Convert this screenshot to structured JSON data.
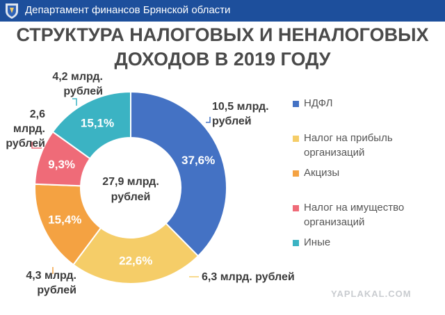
{
  "header": {
    "title": "Департамент финансов Брянской области",
    "crest_icon": "bryansk-coat-of-arms-icon",
    "background": "#1d4f9c"
  },
  "title": {
    "line1": "СТРУКТУРА НАЛОГОВЫХ И НЕНАЛОГОВЫХ",
    "line2": "ДОХОДОВ В 2019 ГОДУ"
  },
  "chart_data": {
    "type": "pie",
    "title": "СТРУКТУРА НАЛОГОВЫХ И НЕНАЛОГОВЫХ ДОХОДОВ В 2019 ГОДУ",
    "donut": true,
    "center_label": [
      "27,9 млрд.",
      "рублей"
    ],
    "legend_position": "right",
    "slices": [
      {
        "name": "НДФЛ",
        "value": 37.6,
        "pct_label": "37,6%",
        "amount_label": [
          "10,5 млрд.",
          "рублей"
        ],
        "color": "#4472c4"
      },
      {
        "name": "Налог на прибыль организаций",
        "value": 22.6,
        "pct_label": "22,6%",
        "amount_label": [
          "6,3 млрд. рублей"
        ],
        "color": "#f5cd68"
      },
      {
        "name": "Акцизы",
        "value": 15.4,
        "pct_label": "15,4%",
        "amount_label": [
          "4,3 млрд.",
          "рублей"
        ],
        "color": "#f4a242"
      },
      {
        "name": "Налог на имущество организаций",
        "value": 9.3,
        "pct_label": "9,3%",
        "amount_label": [
          "2,6 млрд.",
          "рублей"
        ],
        "color": "#ef6b78"
      },
      {
        "name": "Иные",
        "value": 15.1,
        "pct_label": "15,1%",
        "amount_label": [
          "4,2 млрд.",
          "рублей"
        ],
        "color": "#3bb3c3"
      }
    ]
  },
  "legend": {
    "items": [
      {
        "lines": [
          "НДФЛ"
        ],
        "color": "#4472c4"
      },
      {
        "lines": [
          "Налог на прибыль",
          "организаций"
        ],
        "color": "#f5cd68"
      },
      {
        "lines": [
          "Акцизы"
        ],
        "color": "#f4a242"
      },
      {
        "lines": [
          "Налог на имущество",
          "организаций"
        ],
        "color": "#ef6b78"
      },
      {
        "lines": [
          "Иные"
        ],
        "color": "#3bb3c3"
      }
    ]
  },
  "watermark": "YAPLAKAL.COM"
}
